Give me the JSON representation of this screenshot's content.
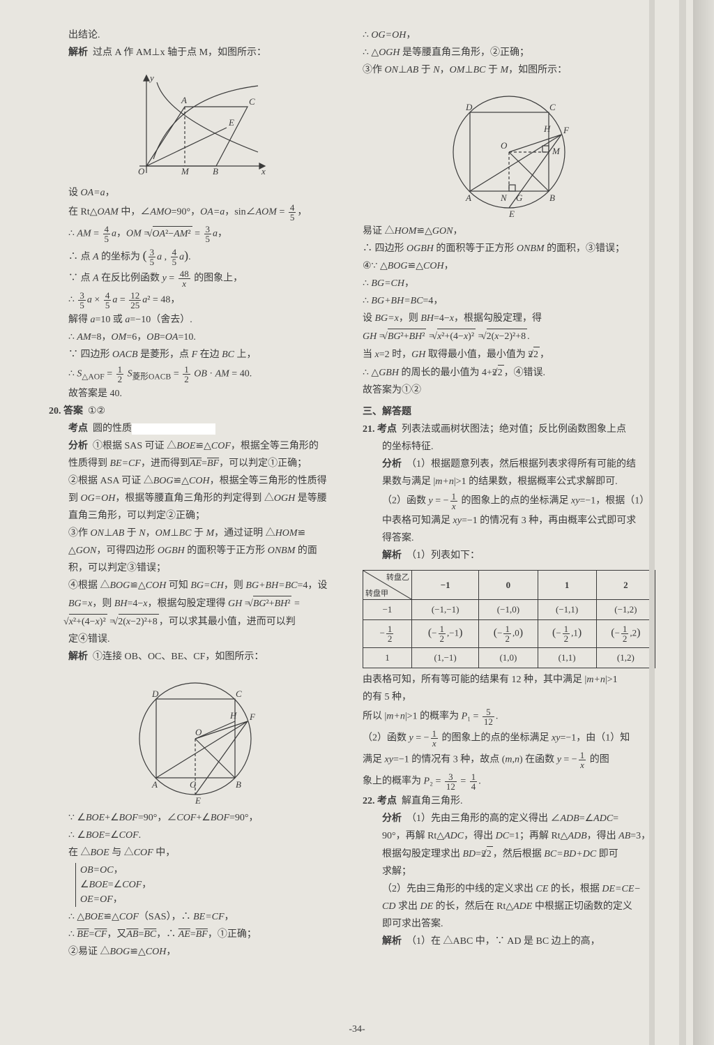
{
  "page_number": "-34-",
  "left": {
    "intro": "出结论.",
    "jiexi_head": "解析",
    "jiexi_text": "过点 A 作 AM⊥x 轴于点 M，如图所示：",
    "fig1": {
      "axis_color": "#3a3a3a",
      "curve_color": "#3a3a3a",
      "labels": [
        "y",
        "x",
        "O",
        "M",
        "B",
        "A",
        "C",
        "E"
      ]
    },
    "lines_a": [
      "设 OA=a，",
      "在 Rt△OAM 中，∠AMO=90°，OA=a，sin∠AOM = 4/5，",
      "∴ AM = 4/5 a，OM = √(OA²−AM²) = 3/5 a，",
      "∴ 点 A 的坐标为 (3/5 a , 4/5 a).",
      "∵ 点 A 在反比例函数 y = 48/x 的图象上，",
      "∴ 3/5 a × 4/5 a = 12/25 a² = 48，",
      "解得 a=10 或 a=−10（舍去）.",
      "∴ AM=8，OM=6，OB=OA=10.",
      "∵ 四边形 OACB 是菱形，点 F 在边 BC 上，",
      "∴ S△AOF = 1/2 S菱形OACB = 1/2 OB · AM = 40.",
      "故答案是 40."
    ],
    "q20": {
      "num": "20.",
      "ans_label": "答案",
      "ans_text": "①②",
      "kd_label": "考点",
      "kd_text": "圆的性质",
      "fx_label": "分析",
      "fx_lines": [
        "①根据 SAS 可证 △BOE≌△COF，根据全等三角形的",
        "性质得到 BE=CF，进而得到 AE弧=BF弧，可以判定①正确；",
        "②根据 ASA 可证 △BOG≌△COH，根据全等三角形的性质得",
        "到 OG=OH，根据等腰直角三角形的判定得到 △OGH 是等腰",
        "直角三角形，可以判定②正确；",
        "③作 ON⊥AB 于 N，OM⊥BC 于 M，通过证明 △HOM≌",
        "△GON，可得四边形 OGBH 的面积等于正方形 ONBM 的面",
        "积，可以判定③错误；",
        "④根据 △BOG≌△COH 可知 BG=CH，则 BG+BH=BC=4，设",
        "BG=x，则 BH=4−x，根据勾股定理得 GH = √(BG²+BH²) =",
        "√(x²+(4−x)²) = √(2(x−2)²+8)，可以求其最小值，进而可以判",
        "定④错误."
      ],
      "jiexi_label": "解析",
      "jiexi_text": "①连接 OB、OC、BE、CF，如图所示：",
      "fig2_labels": [
        "D",
        "C",
        "H",
        "F",
        "O",
        "A",
        "G",
        "B",
        "E"
      ],
      "after_fig": [
        "∵ ∠BOE+∠BOF=90°，∠COF+∠BOF=90°，",
        "∴ ∠BOE=∠COF.",
        "在 △BOE 与 △COF 中，",
        "OB=OC，",
        "∠BOE=∠COF，",
        "OE=OF，",
        "∴ △BOE≌△COF（SAS），∴ BE=CF，",
        "∴ BE弧=CF弧，又 AB弧=BC弧，∴ AE弧=BF弧，①正确；",
        "②易证 △BOG≌△COH，"
      ]
    }
  },
  "right": {
    "top_lines": [
      "∴ OG=OH，",
      "∴ △OGH 是等腰直角三角形，②正确；",
      "③作 ON⊥AB 于 N，OM⊥BC 于 M，如图所示："
    ],
    "fig3_labels": [
      "D",
      "C",
      "H",
      "F",
      "M",
      "O",
      "A",
      "N",
      "G",
      "B",
      "E"
    ],
    "mid_lines": [
      "易证 △HOM≌△GON，",
      "∴ 四边形 OGBH 的面积等于正方形 ONBM 的面积，③错误；",
      "④∵ △BOG≌△COH，",
      "∴ BG=CH，",
      "∴ BG+BH=BC=4，",
      "设 BG=x，则 BH=4−x，根据勾股定理，得",
      "GH = √(BG²+BH²) = √(x²+(4−x)²) = √(2(x−2)²+8).",
      "当 x=2 时，GH 取得最小值，最小值为 2√2，",
      "∴ △GBH 的周长的最小值为 4+2√2，④错误.",
      "故答案为①②"
    ],
    "section3": "三、解答题",
    "q21": {
      "num": "21.",
      "kd_label": "考点",
      "kd_text": "列表法或画树状图法；绝对值；反比例函数图象上点的坐标特征.",
      "fx_label": "分析",
      "fx_lines": [
        "（1）根据题意列表，然后根据列表求得所有可能的结",
        "果数与满足 |m+n|>1 的结果数，根据概率公式求解即可.",
        "（2）函数 y = −1/x 的图象上的点的坐标满足 xy=−1，根据（1）",
        "中表格可知满足 xy=−1 的情况有 3 种，再由概率公式即可求",
        "得答案."
      ],
      "jiexi_label": "解析",
      "jiexi_head": "（1）列表如下：",
      "table": {
        "diag_top": "转盘乙",
        "diag_bot": "转盘甲",
        "cols": [
          "−1",
          "0",
          "1",
          "2"
        ],
        "rows": [
          {
            "h": "−1",
            "cells": [
              "(−1,−1)",
              "(−1,0)",
              "(−1,1)",
              "(−1,2)"
            ]
          },
          {
            "h": "−1/2",
            "cells": [
              "(−1/2,−1)",
              "(−1/2,0)",
              "(−1/2,1)",
              "(−1/2,2)"
            ]
          },
          {
            "h": "1",
            "cells": [
              "(1,−1)",
              "(1,0)",
              "(1,1)",
              "(1,2)"
            ]
          }
        ]
      },
      "after_table": [
        "由表格可知，所有等可能的结果有 12 种，其中满足 |m+n|>1",
        "的有 5 种，",
        "所以 |m+n|>1 的概率为 P₁ = 5/12.",
        "（2）函数 y = −1/x 的图象上的点的坐标满足 xy=−1，由（1）知",
        "满足 xy=−1 的情况有 3 种，故点 (m,n) 在函数 y = −1/x 的图",
        "象上的概率为 P₂ = 3/12 = 1/4."
      ]
    },
    "q22": {
      "num": "22.",
      "kd_label": "考点",
      "kd_text": "解直角三角形.",
      "fx_label": "分析",
      "fx_lines": [
        "（1）先由三角形的高的定义得出 ∠ADB=∠ADC=",
        "90°，再解 Rt△ADC，得出 DC=1；再解 Rt△ADB，得出 AB=3，",
        "根据勾股定理求出 BD=2√2，然后根据 BC=BD+DC 即可",
        "求解；",
        "（2）先由三角形的中线的定义求出 CE 的长，根据 DE=CE−",
        "CD 求出 DE 的长，然后在 Rt△ADE 中根据正切函数的定义",
        "即可求出答案."
      ],
      "jiexi_label": "解析",
      "jiexi_text": "（1）在 △ABC 中，∵ AD 是 BC 边上的高，"
    }
  }
}
